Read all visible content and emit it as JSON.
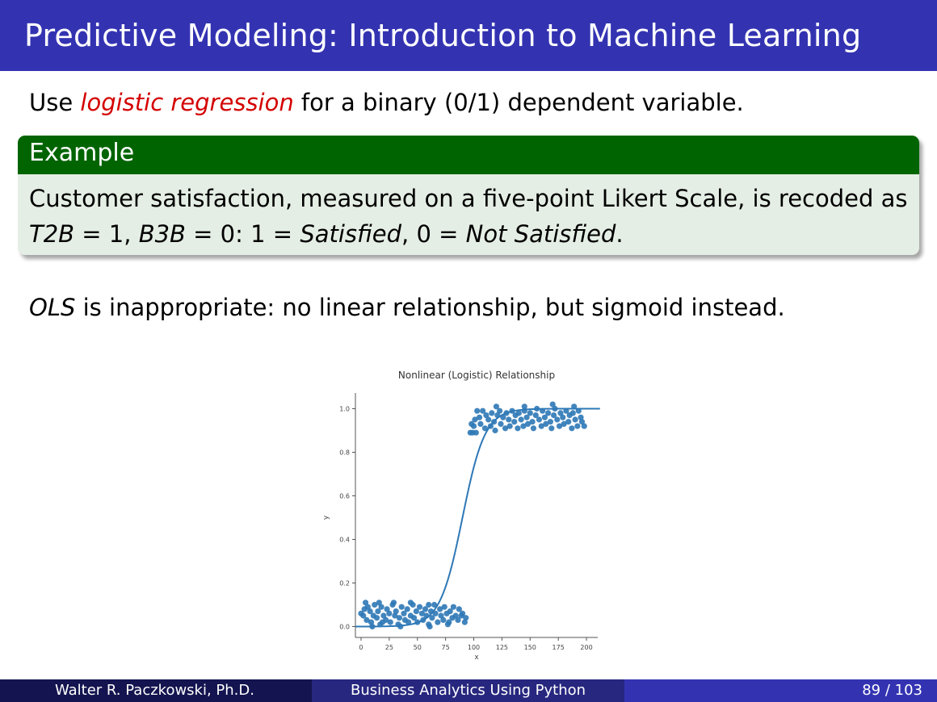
{
  "slide": {
    "title": "Predictive Modeling: Introduction to Machine Learning",
    "line1": {
      "pre": "Use ",
      "highlight": "logistic regression",
      "post": " for a binary (0/1) dependent variable."
    },
    "block": {
      "title": "Example",
      "l1": "Customer satisfaction, measured on a five-point Likert Scale, is recoded as",
      "l2": {
        "a": "T2B",
        "b": " = 1, ",
        "c": "B3B",
        "d": " = 0: 1 = ",
        "e": "Satisfied",
        "f": ", 0 = ",
        "g": "Not Satisfied",
        "h": "."
      }
    },
    "line2": {
      "a": "OLS",
      "b": " is inappropriate: no linear relationship, but sigmoid instead."
    }
  },
  "chart_data": {
    "type": "scatter",
    "title": "Nonlinear (Logistic) Relationship",
    "xlabel": "x",
    "ylabel": "y",
    "xlim": [
      -5,
      210
    ],
    "ylim": [
      -0.05,
      1.05
    ],
    "x_ticks": [
      "0",
      "25",
      "50",
      "75",
      "100",
      "125",
      "150",
      "175",
      "200"
    ],
    "y_ticks": [
      "0.0",
      "0.2",
      "0.4",
      "0.6",
      "0.8",
      "1.0"
    ],
    "curve": {
      "type": "logistic",
      "midpoint": 90,
      "scale": 10
    },
    "series_color": "#2e78b6",
    "points": [
      [
        0,
        0.06
      ],
      [
        2,
        0.05
      ],
      [
        3,
        0.08
      ],
      [
        5,
        0.03
      ],
      [
        6,
        0.09
      ],
      [
        8,
        0.07
      ],
      [
        9,
        0.02
      ],
      [
        11,
        0.05
      ],
      [
        12,
        0.1
      ],
      [
        14,
        0.04
      ],
      [
        15,
        0.07
      ],
      [
        17,
        0.01
      ],
      [
        18,
        0.09
      ],
      [
        20,
        0.05
      ],
      [
        22,
        0.03
      ],
      [
        23,
        0.08
      ],
      [
        25,
        0.06
      ],
      [
        26,
        0.02
      ],
      [
        28,
        0.1
      ],
      [
        30,
        0.05
      ],
      [
        31,
        0.07
      ],
      [
        33,
        0.01
      ],
      [
        34,
        0.04
      ],
      [
        36,
        0.09
      ],
      [
        38,
        0.06
      ],
      [
        39,
        0.03
      ],
      [
        41,
        0.08
      ],
      [
        42,
        0.02
      ],
      [
        44,
        0.05
      ],
      [
        46,
        0.1
      ],
      [
        47,
        0.04
      ],
      [
        49,
        0.07
      ],
      [
        50,
        0.02
      ],
      [
        52,
        0.09
      ],
      [
        54,
        0.06
      ],
      [
        55,
        0.03
      ],
      [
        57,
        0.08
      ],
      [
        58,
        0.05
      ],
      [
        60,
        0.01
      ],
      [
        62,
        0.07
      ],
      [
        63,
        0.04
      ],
      [
        65,
        0.1
      ],
      [
        66,
        0.06
      ],
      [
        68,
        0.02
      ],
      [
        70,
        0.08
      ],
      [
        71,
        0.05
      ],
      [
        73,
        0.03
      ],
      [
        74,
        0.09
      ],
      [
        76,
        0.06
      ],
      [
        78,
        0.02
      ],
      [
        79,
        0.07
      ],
      [
        81,
        0.04
      ],
      [
        82,
        0.09
      ],
      [
        84,
        0.05
      ],
      [
        86,
        0.03
      ],
      [
        87,
        0.08
      ],
      [
        89,
        0.05
      ],
      [
        90,
        0.06
      ],
      [
        92,
        0.02
      ],
      [
        93,
        0.04
      ],
      [
        4,
        0.11
      ],
      [
        16,
        0.11
      ],
      [
        29,
        0.11
      ],
      [
        44,
        0.11
      ],
      [
        60,
        0.1
      ],
      [
        10,
        0.0
      ],
      [
        35,
        0.0
      ],
      [
        61,
        0.0
      ],
      [
        77,
        0.01
      ],
      [
        19,
        0.02
      ],
      [
        103,
        0.99
      ],
      [
        105,
        0.96
      ],
      [
        106,
        0.93
      ],
      [
        108,
        0.99
      ],
      [
        110,
        0.91
      ],
      [
        111,
        0.97
      ],
      [
        113,
        0.95
      ],
      [
        115,
        0.92
      ],
      [
        116,
        0.98
      ],
      [
        118,
        0.94
      ],
      [
        119,
        0.9
      ],
      [
        121,
        0.97
      ],
      [
        123,
        0.99
      ],
      [
        124,
        0.93
      ],
      [
        126,
        0.96
      ],
      [
        128,
        0.91
      ],
      [
        129,
        0.98
      ],
      [
        131,
        0.95
      ],
      [
        132,
        0.92
      ],
      [
        134,
        0.99
      ],
      [
        136,
        0.94
      ],
      [
        137,
        0.97
      ],
      [
        139,
        0.91
      ],
      [
        140,
        0.98
      ],
      [
        142,
        0.95
      ],
      [
        144,
        0.92
      ],
      [
        145,
        0.99
      ],
      [
        147,
        0.96
      ],
      [
        148,
        0.93
      ],
      [
        150,
        0.98
      ],
      [
        152,
        0.94
      ],
      [
        153,
        0.91
      ],
      [
        155,
        0.97
      ],
      [
        156,
        1.0
      ],
      [
        158,
        0.95
      ],
      [
        160,
        0.92
      ],
      [
        161,
        0.99
      ],
      [
        163,
        0.96
      ],
      [
        164,
        0.93
      ],
      [
        166,
        0.98
      ],
      [
        168,
        0.94
      ],
      [
        169,
        0.91
      ],
      [
        171,
        0.97
      ],
      [
        172,
        1.0
      ],
      [
        174,
        0.95
      ],
      [
        176,
        0.92
      ],
      [
        177,
        0.98
      ],
      [
        179,
        0.96
      ],
      [
        180,
        0.93
      ],
      [
        182,
        0.99
      ],
      [
        184,
        0.94
      ],
      [
        185,
        0.97
      ],
      [
        187,
        0.91
      ],
      [
        188,
        0.98
      ],
      [
        190,
        0.95
      ],
      [
        192,
        0.92
      ],
      [
        193,
        0.99
      ],
      [
        195,
        0.96
      ],
      [
        196,
        0.94
      ],
      [
        198,
        0.92
      ],
      [
        100,
        0.92
      ],
      [
        101,
        0.95
      ],
      [
        98,
        0.93
      ],
      [
        99,
        0.89
      ],
      [
        97,
        0.89
      ],
      [
        102,
        0.89
      ],
      [
        120,
        1.01
      ],
      [
        145,
        1.01
      ],
      [
        170,
        1.02
      ],
      [
        189,
        1.01
      ]
    ]
  },
  "footer": {
    "author": "Walter R. Paczkowski, Ph.D.",
    "course": "Business Analytics Using Python",
    "page": "89 / 103"
  }
}
